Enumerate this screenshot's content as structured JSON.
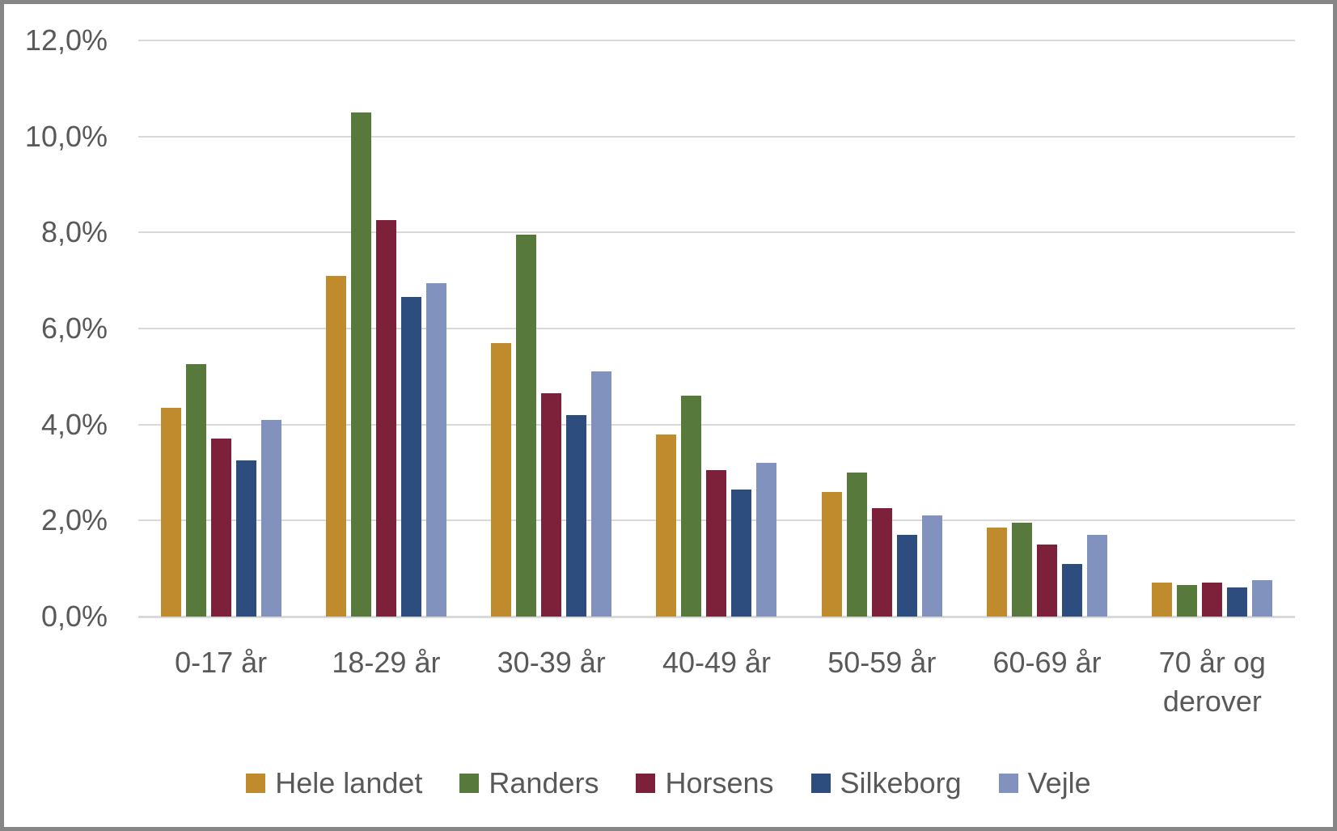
{
  "chart_data": {
    "type": "bar",
    "title": "",
    "xlabel": "",
    "ylabel": "",
    "grid": true,
    "legend_position": "bottom",
    "ylim": [
      0,
      12
    ],
    "ytick_step": 2,
    "yticks": [
      0,
      2,
      4,
      6,
      8,
      10,
      12
    ],
    "ytick_labels": [
      "0,0%",
      "2,0%",
      "4,0%",
      "6,0%",
      "8,0%",
      "10,0%",
      "12,0%"
    ],
    "categories": [
      "0-17 år",
      "18-29 år",
      "30-39 år",
      "40-49 år",
      "50-59 år",
      "60-69 år",
      "70 år og\nderover"
    ],
    "series": [
      {
        "name": "Hele landet",
        "color": "#C08B2D",
        "values": [
          4.35,
          7.1,
          5.7,
          3.8,
          2.6,
          1.85,
          0.7
        ]
      },
      {
        "name": "Randers",
        "color": "#57793B",
        "values": [
          5.25,
          10.5,
          7.95,
          4.6,
          3.0,
          1.95,
          0.65
        ]
      },
      {
        "name": "Horsens",
        "color": "#7C2139",
        "values": [
          3.7,
          8.25,
          4.65,
          3.05,
          2.25,
          1.5,
          0.7
        ]
      },
      {
        "name": "Silkeborg",
        "color": "#2C4D7D",
        "values": [
          3.25,
          6.65,
          4.2,
          2.65,
          1.7,
          1.1,
          0.6
        ]
      },
      {
        "name": "Vejle",
        "color": "#8292BE",
        "values": [
          4.1,
          6.95,
          5.1,
          3.2,
          2.1,
          1.7,
          0.75
        ]
      }
    ]
  },
  "colors": {
    "background": "#FFFFFF",
    "grid": "#D9D9D9",
    "text": "#595959",
    "frame_border": "#868686"
  }
}
